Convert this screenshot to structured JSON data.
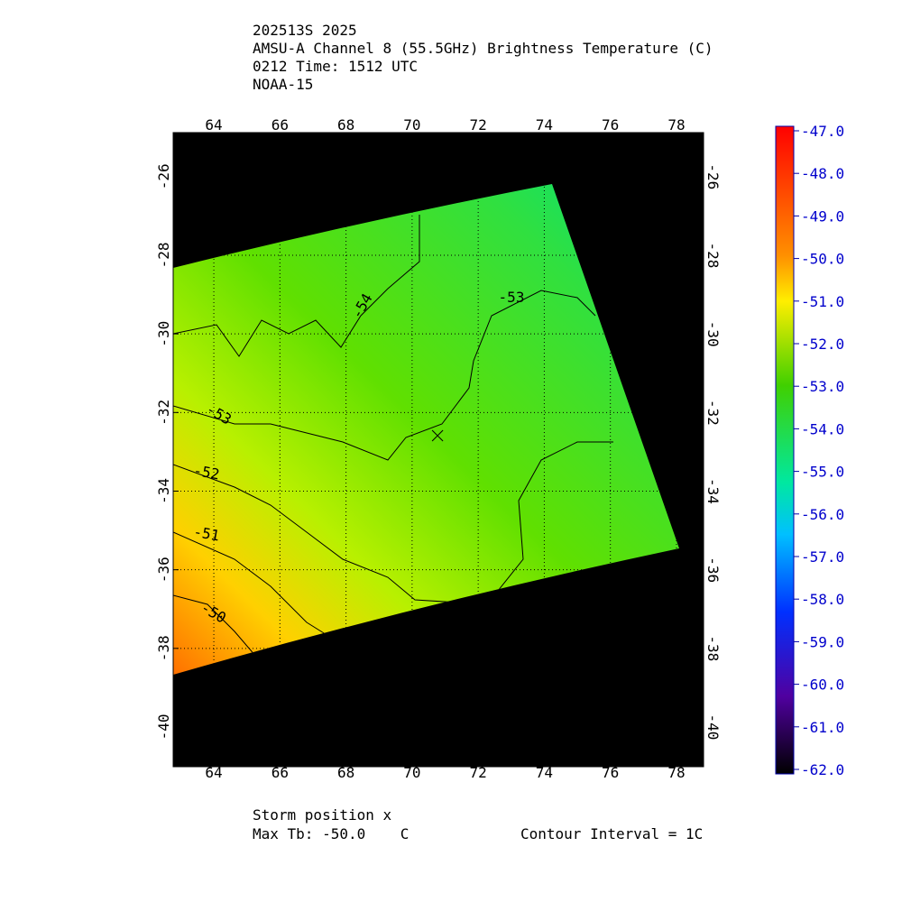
{
  "header": {
    "lines": [
      "202513S 2025",
      "AMSU-A Channel 8 (55.5GHz) Brightness Temperature (C)",
      "0212 Time: 1512 UTC",
      "NOAA-15"
    ]
  },
  "map": {
    "xlim": [
      62.77,
      78.82
    ],
    "ylim": [
      -24.88,
      -41.01
    ],
    "xticks": [
      64,
      66,
      68,
      70,
      72,
      74,
      76,
      78
    ],
    "yticks": [
      -26,
      -28,
      -30,
      -32,
      -34,
      -36,
      -38,
      -40
    ],
    "grid": true,
    "storm": {
      "lon": 70.77,
      "lat": -32.59
    },
    "contour_labels": [
      "-54",
      "-53",
      "-53",
      "-52",
      "-51",
      "-50"
    ]
  },
  "colorbar": {
    "lim": [
      -62,
      -47
    ],
    "ticks": [
      {
        "value": -47,
        "label": "-47.0"
      },
      {
        "value": -48,
        "label": "-48.0"
      },
      {
        "value": -49,
        "label": "-49.0"
      },
      {
        "value": -50,
        "label": "-50.0"
      },
      {
        "value": -51,
        "label": "-51.0"
      },
      {
        "value": -52,
        "label": "-52.0"
      },
      {
        "value": -53,
        "label": "-53.0"
      },
      {
        "value": -54,
        "label": "-54.0"
      },
      {
        "value": -55,
        "label": "-55.0"
      },
      {
        "value": -56,
        "label": "-56.0"
      },
      {
        "value": -57,
        "label": "-57.0"
      },
      {
        "value": -58,
        "label": "-58.0"
      },
      {
        "value": -59,
        "label": "-59.0"
      },
      {
        "value": -60,
        "label": "-60.0"
      },
      {
        "value": -61,
        "label": "-61.0"
      },
      {
        "value": -62,
        "label": "-62.0"
      }
    ]
  },
  "footer": {
    "storm_label": "Storm position x",
    "max_tb": "Max Tb: -50.0    C",
    "contour_interval": "Contour Interval = 1C"
  }
}
